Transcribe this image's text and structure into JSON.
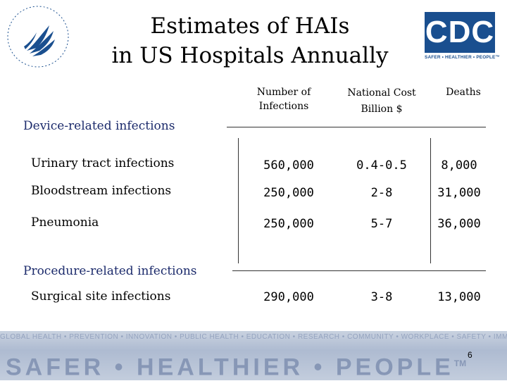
{
  "title": {
    "line1": "Estimates of HAIs",
    "line2": "in US Hospitals Annually"
  },
  "logos": {
    "cdc_text": "CDC",
    "cdc_tagline": "SAFER • HEALTHIER • PEOPLE™",
    "hhs_icon": "hhs-eagle-seal"
  },
  "columns": [
    {
      "line1": "Number of",
      "line2": "Infections"
    },
    {
      "line1": "National Cost",
      "line2": "Billion $"
    },
    {
      "line1": "Deaths",
      "line2": ""
    }
  ],
  "sections": [
    {
      "title": "Device-related infections",
      "rows": [
        {
          "label": "Urinary tract infections",
          "values": [
            "560,000",
            "0.4-0.5",
            "8,000"
          ]
        },
        {
          "label": "Bloodstream infections",
          "values": [
            "250,000",
            "2-8",
            "31,000"
          ]
        },
        {
          "label": "Pneumonia",
          "values": [
            "250,000",
            "5-7",
            "36,000"
          ]
        }
      ]
    },
    {
      "title": "Procedure-related infections",
      "rows": [
        {
          "label": "Surgical site infections",
          "values": [
            "290,000",
            "3-8",
            "13,000"
          ]
        }
      ]
    }
  ],
  "footer": {
    "slogan": "SAFER • HEALTHIER • PEOPLE",
    "trademark": "TM",
    "background_text": "GLOBAL HEALTH • PREVENTION • INNOVATION • PUBLIC HEALTH • EDUCATION • RESEARCH • COMMUNITY • WORKPLACE • SAFETY • IMMUNIZATION",
    "page_number": "6"
  },
  "colors": {
    "section_heading": "#1b2a6b",
    "cdc_blue": "#1a4f8f",
    "footer_band": "#aebbd1"
  }
}
